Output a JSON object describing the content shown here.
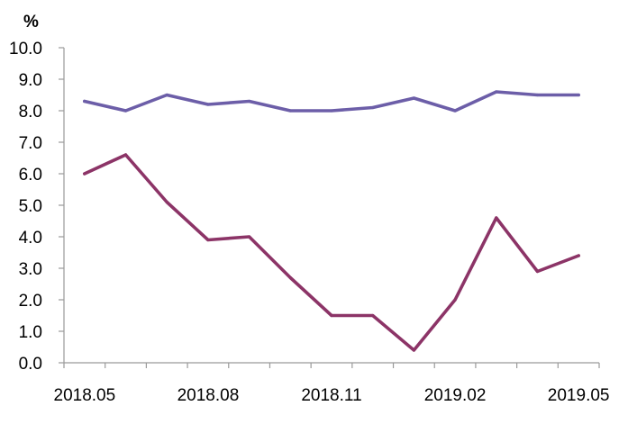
{
  "chart_data": {
    "type": "line",
    "title": "",
    "xlabel": "",
    "ylabel": "%",
    "ylim": [
      0,
      10
    ],
    "yticks": [
      "0.0",
      "1.0",
      "2.0",
      "3.0",
      "4.0",
      "5.0",
      "6.0",
      "7.0",
      "8.0",
      "9.0",
      "10.0"
    ],
    "x": [
      "2018.05",
      "2018.06",
      "2018.07",
      "2018.08",
      "2018.09",
      "2018.10",
      "2018.11",
      "2018.12",
      "2019.01",
      "2019.02",
      "2019.03",
      "2019.04",
      "2019.05"
    ],
    "xtick_labels": [
      "2018.05",
      "2018.08",
      "2018.11",
      "2019.02",
      "2019.05"
    ],
    "grid": false,
    "legend": "none",
    "series": [
      {
        "color": "#6c5ea8",
        "values": [
          8.3,
          8.0,
          8.5,
          8.2,
          8.3,
          8.0,
          8.0,
          8.1,
          8.4,
          8.0,
          8.6,
          8.5,
          8.5
        ]
      },
      {
        "color": "#8c3467",
        "values": [
          6.0,
          6.6,
          5.1,
          3.9,
          4.0,
          2.7,
          1.5,
          1.5,
          0.4,
          2.0,
          4.6,
          2.9,
          3.4
        ]
      }
    ]
  }
}
